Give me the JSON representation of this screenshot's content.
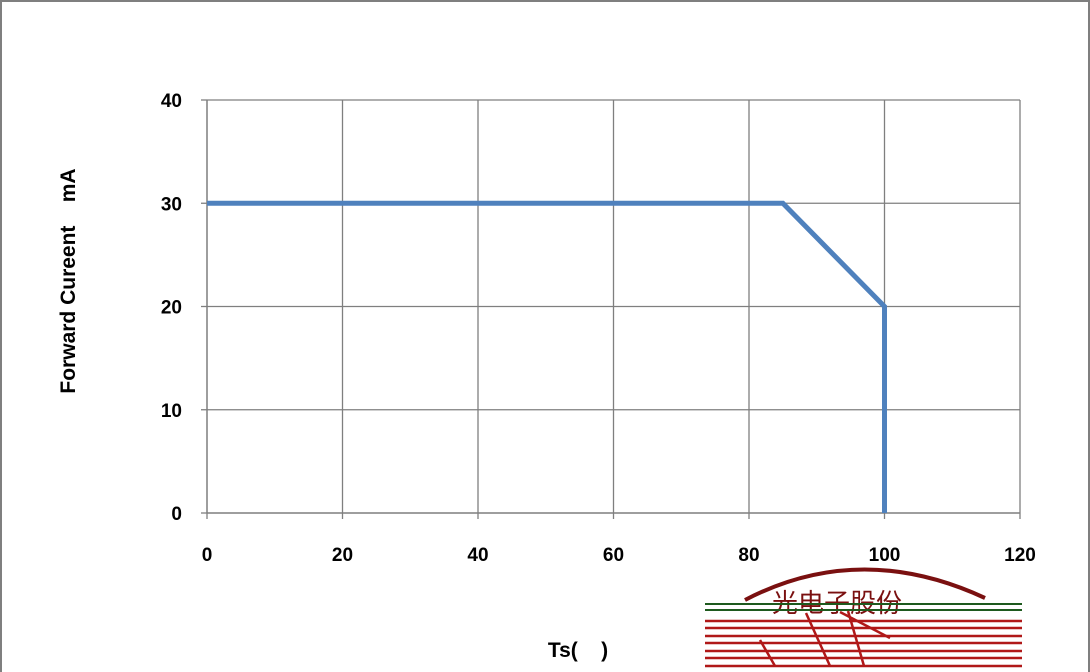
{
  "chart_data": {
    "type": "line",
    "title": "",
    "xlabel": "Ts(    )",
    "ylabel": "Forward Cureent    mA",
    "xlim": [
      0,
      120
    ],
    "ylim": [
      0,
      40
    ],
    "x_ticks": [
      0,
      20,
      40,
      60,
      80,
      100,
      120
    ],
    "y_ticks": [
      0,
      10,
      20,
      30,
      40
    ],
    "x_tick_labels": [
      "0",
      "20",
      "40",
      "60",
      "80",
      "100",
      "120"
    ],
    "y_tick_labels": [
      "0",
      "10",
      "20",
      "30",
      "40"
    ],
    "grid": true,
    "legend": "none",
    "series": [
      {
        "color": "#4f81bd",
        "x": [
          0,
          85,
          100,
          100
        ],
        "y": [
          30,
          30,
          20,
          0
        ]
      }
    ]
  },
  "stamp": {
    "text": "光电子股份"
  },
  "colors": {
    "frame": "#7f7f7f",
    "grid": "#7f7f7f",
    "axis": "#7f7f7f",
    "stamp": "#7a1010"
  }
}
